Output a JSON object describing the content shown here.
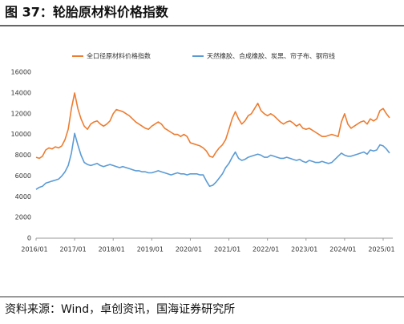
{
  "chart_data": {
    "type": "line",
    "title": "图 37：轮胎原材料价格指数",
    "source": "资料来源：Wind，卓创资讯，国海证券研究所",
    "categories": [
      "2016/01",
      null,
      null,
      null,
      null,
      null,
      null,
      null,
      null,
      null,
      null,
      null,
      "2017/01",
      null,
      null,
      null,
      null,
      null,
      null,
      null,
      null,
      null,
      null,
      null,
      "2018/01",
      null,
      null,
      null,
      null,
      null,
      null,
      null,
      null,
      null,
      null,
      null,
      "2019/01",
      null,
      null,
      null,
      null,
      null,
      null,
      null,
      null,
      null,
      null,
      null,
      "2020/01",
      null,
      null,
      null,
      null,
      null,
      null,
      null,
      null,
      null,
      null,
      null,
      "2021/01",
      null,
      null,
      null,
      null,
      null,
      null,
      null,
      null,
      null,
      null,
      null,
      "2022/01",
      null,
      null,
      null,
      null,
      null,
      null,
      null,
      null,
      null,
      null,
      null,
      "2023/01",
      null,
      null,
      null,
      null,
      null,
      null,
      null,
      null,
      null,
      null,
      null,
      "2024/01",
      null,
      null,
      null,
      null,
      null,
      null,
      null,
      null,
      null,
      null,
      null,
      "2025/01",
      null,
      null
    ],
    "series": [
      {
        "name": "全口径原材料价格指数",
        "color": "#ed7d31",
        "values": [
          7800,
          7700,
          7900,
          8500,
          8700,
          8600,
          8800,
          8700,
          8900,
          9500,
          10500,
          12500,
          14000,
          12500,
          11500,
          10800,
          10500,
          11000,
          11200,
          11300,
          11000,
          10800,
          11000,
          11300,
          12000,
          12400,
          12300,
          12200,
          12000,
          11800,
          11500,
          11200,
          11000,
          10800,
          10600,
          10500,
          10800,
          11000,
          11200,
          11000,
          10600,
          10400,
          10200,
          10000,
          10000,
          9800,
          10000,
          9800,
          9200,
          9100,
          9000,
          8900,
          8700,
          8400,
          7900,
          7800,
          8300,
          8700,
          9000,
          9500,
          10500,
          11500,
          12200,
          11500,
          11000,
          11300,
          11800,
          12000,
          12500,
          13000,
          12300,
          12000,
          11800,
          12000,
          11800,
          11500,
          11200,
          11000,
          11200,
          11300,
          11100,
          10800,
          11000,
          10600,
          10500,
          10600,
          10400,
          10200,
          10000,
          9800,
          9800,
          9900,
          10000,
          9900,
          9800,
          11200,
          12000,
          11000,
          10600,
          10800,
          11000,
          11200,
          11300,
          11000,
          11500,
          11300,
          11500,
          12300,
          12500,
          12000,
          11600
        ]
      },
      {
        "name": "天然橡胶、合成橡胶、炭黑、帘子布、钢帘线",
        "color": "#5b9bd5",
        "values": [
          4700,
          4900,
          5000,
          5300,
          5400,
          5500,
          5600,
          5700,
          6000,
          6400,
          7000,
          8200,
          10100,
          9000,
          8000,
          7300,
          7100,
          7000,
          7100,
          7200,
          7000,
          6900,
          7000,
          7100,
          7000,
          6900,
          6800,
          6900,
          6800,
          6700,
          6600,
          6500,
          6500,
          6400,
          6400,
          6300,
          6300,
          6400,
          6500,
          6400,
          6300,
          6200,
          6100,
          6200,
          6300,
          6200,
          6200,
          6100,
          6200,
          6200,
          6200,
          6100,
          6100,
          5500,
          5000,
          5100,
          5400,
          5800,
          6200,
          6800,
          7200,
          7800,
          8300,
          7700,
          7500,
          7600,
          7800,
          7900,
          8000,
          8100,
          8000,
          7800,
          7800,
          8000,
          7900,
          7800,
          7700,
          7700,
          7800,
          7700,
          7600,
          7500,
          7600,
          7400,
          7300,
          7500,
          7400,
          7300,
          7300,
          7400,
          7300,
          7200,
          7300,
          7600,
          7900,
          8200,
          8000,
          7900,
          7900,
          8000,
          8100,
          8200,
          8300,
          8100,
          8500,
          8400,
          8500,
          9000,
          8900,
          8600,
          8200
        ]
      }
    ],
    "ylim": [
      0,
      16000
    ],
    "yticks": [
      0,
      2000,
      4000,
      6000,
      8000,
      10000,
      12000,
      14000,
      16000
    ],
    "grid": false
  }
}
